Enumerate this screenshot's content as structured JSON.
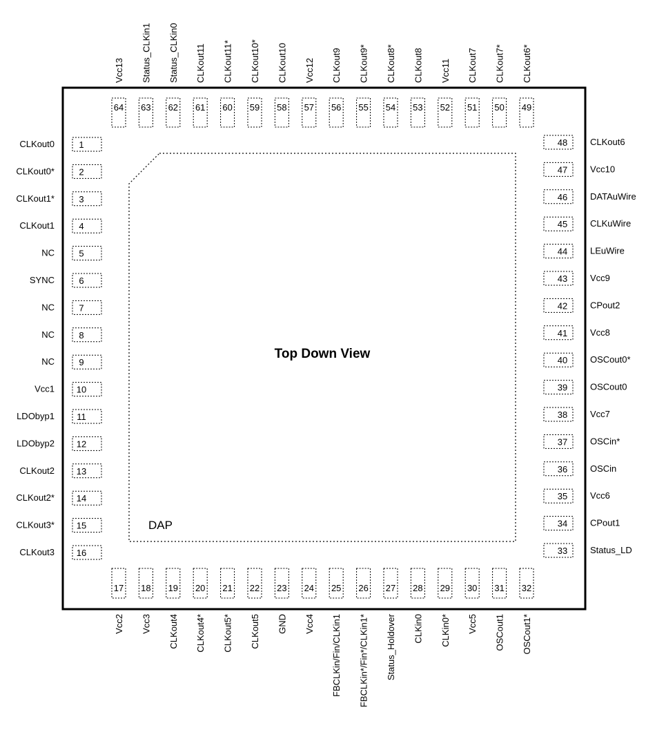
{
  "view_label": "Top Down View",
  "dap_label": "DAP",
  "pins_left": [
    {
      "num": "1",
      "name": "CLKout0"
    },
    {
      "num": "2",
      "name": "CLKout0*"
    },
    {
      "num": "3",
      "name": "CLKout1*"
    },
    {
      "num": "4",
      "name": "CLKout1"
    },
    {
      "num": "5",
      "name": "NC"
    },
    {
      "num": "6",
      "name": "SYNC"
    },
    {
      "num": "7",
      "name": "NC"
    },
    {
      "num": "8",
      "name": "NC"
    },
    {
      "num": "9",
      "name": "NC"
    },
    {
      "num": "10",
      "name": "Vcc1"
    },
    {
      "num": "11",
      "name": "LDObyp1"
    },
    {
      "num": "12",
      "name": "LDObyp2"
    },
    {
      "num": "13",
      "name": "CLKout2"
    },
    {
      "num": "14",
      "name": "CLKout2*"
    },
    {
      "num": "15",
      "name": "CLKout3*"
    },
    {
      "num": "16",
      "name": "CLKout3"
    }
  ],
  "pins_bottom": [
    {
      "num": "17",
      "name": "Vcc2"
    },
    {
      "num": "18",
      "name": "Vcc3"
    },
    {
      "num": "19",
      "name": "CLKout4"
    },
    {
      "num": "20",
      "name": "CLKout4*"
    },
    {
      "num": "21",
      "name": "CLKout5*"
    },
    {
      "num": "22",
      "name": "CLKout5"
    },
    {
      "num": "23",
      "name": "GND"
    },
    {
      "num": "24",
      "name": "Vcc4"
    },
    {
      "num": "25",
      "name": "FBCLKin/Fin/CLKin1"
    },
    {
      "num": "26",
      "name": "FBCLKin*/Fin*/CLKin1*"
    },
    {
      "num": "27",
      "name": "Status_Holdover"
    },
    {
      "num": "28",
      "name": "CLKin0"
    },
    {
      "num": "29",
      "name": "CLKin0*"
    },
    {
      "num": "30",
      "name": "Vcc5"
    },
    {
      "num": "31",
      "name": "OSCout1"
    },
    {
      "num": "32",
      "name": "OSCout1*"
    }
  ],
  "pins_right": [
    {
      "num": "33",
      "name": "Status_LD"
    },
    {
      "num": "34",
      "name": "CPout1"
    },
    {
      "num": "35",
      "name": "Vcc6"
    },
    {
      "num": "36",
      "name": "OSCin"
    },
    {
      "num": "37",
      "name": "OSCin*"
    },
    {
      "num": "38",
      "name": "Vcc7"
    },
    {
      "num": "39",
      "name": "OSCout0"
    },
    {
      "num": "40",
      "name": "OSCout0*"
    },
    {
      "num": "41",
      "name": "Vcc8"
    },
    {
      "num": "42",
      "name": "CPout2"
    },
    {
      "num": "43",
      "name": "Vcc9"
    },
    {
      "num": "44",
      "name": "LEuWire"
    },
    {
      "num": "45",
      "name": "CLKuWire"
    },
    {
      "num": "46",
      "name": "DATAuWire"
    },
    {
      "num": "47",
      "name": "Vcc10"
    },
    {
      "num": "48",
      "name": "CLKout6"
    }
  ],
  "pins_top": [
    {
      "num": "49",
      "name": "CLKout6*"
    },
    {
      "num": "50",
      "name": "CLKout7*"
    },
    {
      "num": "51",
      "name": "CLKout7"
    },
    {
      "num": "52",
      "name": "Vcc11"
    },
    {
      "num": "53",
      "name": "CLKout8"
    },
    {
      "num": "54",
      "name": "CLKout8*"
    },
    {
      "num": "55",
      "name": "CLKout9*"
    },
    {
      "num": "56",
      "name": "CLKout9"
    },
    {
      "num": "57",
      "name": "Vcc12"
    },
    {
      "num": "58",
      "name": "CLKout10"
    },
    {
      "num": "59",
      "name": "CLKout10*"
    },
    {
      "num": "60",
      "name": "CLKout11*"
    },
    {
      "num": "61",
      "name": "CLKout11"
    },
    {
      "num": "62",
      "name": "Status_CLKin0"
    },
    {
      "num": "63",
      "name": "Status_CLKin1"
    },
    {
      "num": "64",
      "name": "Vcc13"
    }
  ]
}
